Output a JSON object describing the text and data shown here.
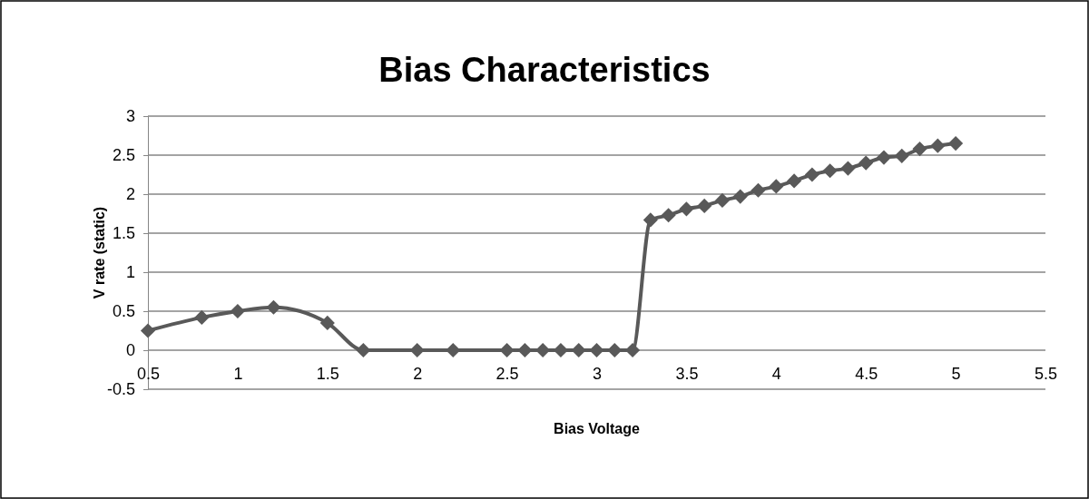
{
  "chart_data": {
    "type": "line",
    "title": "Bias Characteristics",
    "xlabel": "Bias Voltage",
    "ylabel": "V rate (static)",
    "x": [
      0.5,
      0.8,
      1,
      1.2,
      1.5,
      1.7,
      2,
      2.2,
      2.5,
      2.6,
      2.7,
      2.8,
      2.9,
      3,
      3.1,
      3.2,
      3.3,
      3.4,
      3.5,
      3.6,
      3.7,
      3.8,
      3.9,
      4,
      4.1,
      4.2,
      4.3,
      4.4,
      4.5,
      4.6,
      4.7,
      4.8,
      4.9,
      5
    ],
    "series": [
      {
        "color": "#595959",
        "values": [
          0.25,
          0.42,
          0.5,
          0.55,
          0.35,
          0,
          0,
          0,
          0,
          0,
          0,
          0,
          0,
          0,
          0,
          0,
          1.67,
          1.73,
          1.81,
          1.85,
          1.92,
          1.97,
          2.05,
          2.1,
          2.17,
          2.25,
          2.3,
          2.33,
          2.4,
          2.47,
          2.49,
          2.58,
          2.62,
          2.65
        ]
      }
    ],
    "xlim": [
      0.5,
      5.5
    ],
    "xticks": [
      0.5,
      1,
      1.5,
      2,
      2.5,
      3,
      3.5,
      4,
      4.5,
      5,
      5.5
    ],
    "ylim": [
      -0.5,
      3
    ],
    "yticks": [
      -0.5,
      0,
      0.5,
      1,
      1.5,
      2,
      2.5,
      3
    ],
    "grid": "y",
    "marker": "diamond",
    "line_style": "solid"
  }
}
